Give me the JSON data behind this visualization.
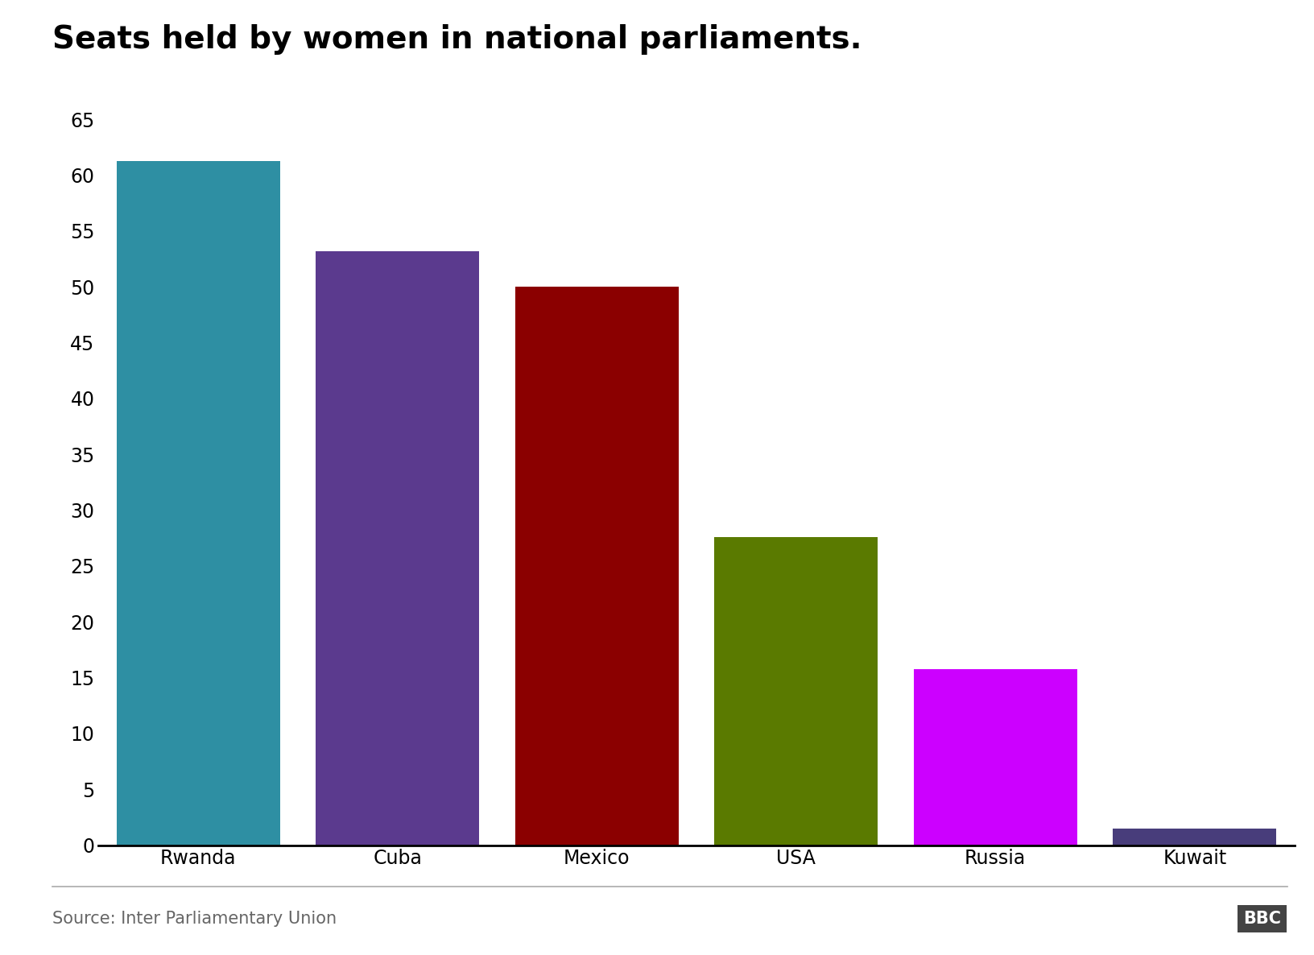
{
  "title": "Seats held by women in national parliaments.",
  "categories": [
    "Rwanda",
    "Cuba",
    "Mexico",
    "USA",
    "Russia",
    "Kuwait"
  ],
  "values": [
    61.3,
    53.2,
    50.0,
    27.6,
    15.8,
    1.5
  ],
  "bar_colors": [
    "#2e8fa3",
    "#5b3a8e",
    "#8b0000",
    "#5a7a00",
    "#cc00ff",
    "#483d7b"
  ],
  "ylim": [
    0,
    65
  ],
  "yticks": [
    0,
    5,
    10,
    15,
    20,
    25,
    30,
    35,
    40,
    45,
    50,
    55,
    60,
    65
  ],
  "source_text": "Source: Inter Parliamentary Union",
  "bbc_text": "BBC",
  "title_fontsize": 28,
  "tick_fontsize": 17,
  "source_fontsize": 15,
  "background_color": "#ffffff",
  "bar_width": 0.82
}
